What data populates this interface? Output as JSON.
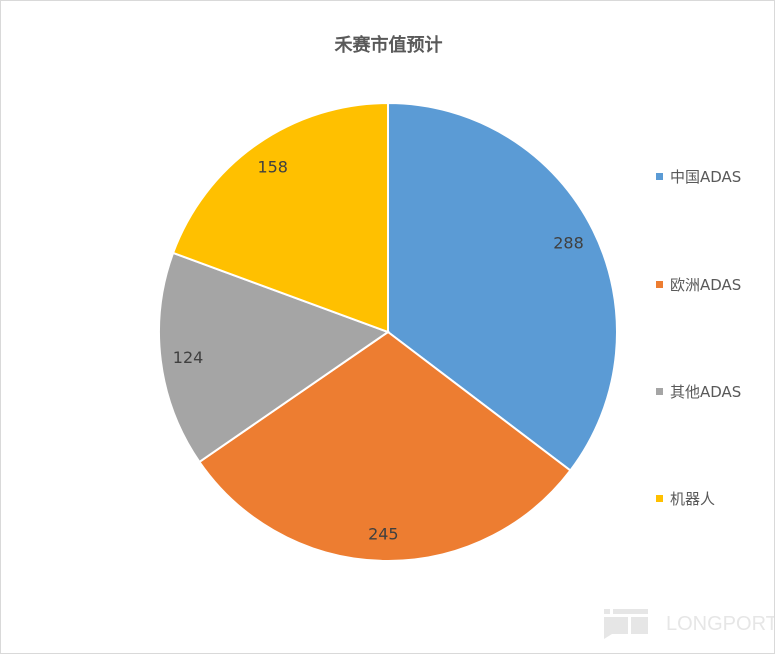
{
  "chart_data": {
    "type": "pie",
    "title": "禾赛市值预计",
    "categories": [
      "中国ADAS",
      "欧洲ADAS",
      "其他ADAS",
      "机器人"
    ],
    "values": [
      288,
      245,
      124,
      158
    ],
    "colors": [
      "#5B9BD5",
      "#ED7D31",
      "#A5A5A5",
      "#FFC000"
    ],
    "start_angle": "top, clockwise",
    "legend_position": "right",
    "data_labels": true
  },
  "watermark": "LONGPORT"
}
